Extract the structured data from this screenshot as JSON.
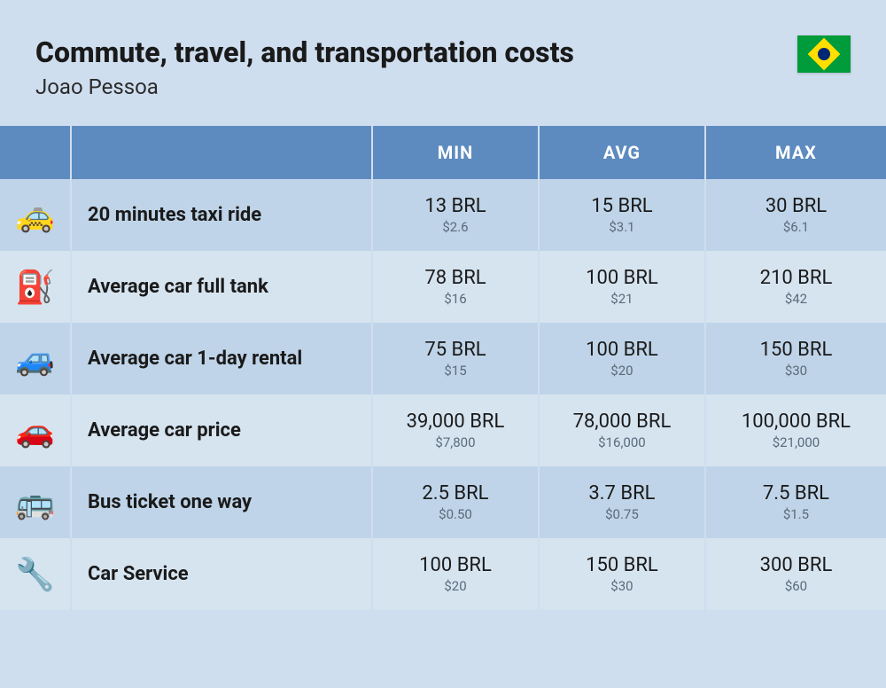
{
  "header": {
    "title": "Commute, travel, and transportation costs",
    "subtitle": "Joao Pessoa",
    "flag_colors": {
      "green": "#009b3a",
      "yellow": "#fedf00",
      "blue": "#002776"
    }
  },
  "table": {
    "columns": [
      "MIN",
      "AVG",
      "MAX"
    ],
    "header_bg": "#5d8bbf",
    "header_text_color": "#ffffff",
    "row_odd_bg": "#bfd4e8",
    "row_even_bg": "#d6e4f0",
    "brl_fontsize": 22,
    "usd_fontsize": 15,
    "usd_color": "#5a6a7a",
    "label_fontsize": 22,
    "rows": [
      {
        "icon": "🚕",
        "label": "20 minutes taxi ride",
        "min": {
          "brl": "13 BRL",
          "usd": "$2.6"
        },
        "avg": {
          "brl": "15 BRL",
          "usd": "$3.1"
        },
        "max": {
          "brl": "30 BRL",
          "usd": "$6.1"
        }
      },
      {
        "icon": "⛽",
        "label": "Average car full tank",
        "min": {
          "brl": "78 BRL",
          "usd": "$16"
        },
        "avg": {
          "brl": "100 BRL",
          "usd": "$21"
        },
        "max": {
          "brl": "210 BRL",
          "usd": "$42"
        }
      },
      {
        "icon": "🚙",
        "label": "Average car 1-day rental",
        "min": {
          "brl": "75 BRL",
          "usd": "$15"
        },
        "avg": {
          "brl": "100 BRL",
          "usd": "$20"
        },
        "max": {
          "brl": "150 BRL",
          "usd": "$30"
        }
      },
      {
        "icon": "🚗",
        "label": "Average car price",
        "min": {
          "brl": "39,000 BRL",
          "usd": "$7,800"
        },
        "avg": {
          "brl": "78,000 BRL",
          "usd": "$16,000"
        },
        "max": {
          "brl": "100,000 BRL",
          "usd": "$21,000"
        }
      },
      {
        "icon": "🚌",
        "label": "Bus ticket one way",
        "min": {
          "brl": "2.5 BRL",
          "usd": "$0.50"
        },
        "avg": {
          "brl": "3.7 BRL",
          "usd": "$0.75"
        },
        "max": {
          "brl": "7.5 BRL",
          "usd": "$1.5"
        }
      },
      {
        "icon": "🔧",
        "label": "Car Service",
        "min": {
          "brl": "100 BRL",
          "usd": "$20"
        },
        "avg": {
          "brl": "150 BRL",
          "usd": "$30"
        },
        "max": {
          "brl": "300 BRL",
          "usd": "$60"
        }
      }
    ]
  },
  "page_bg": "#cfdeef"
}
